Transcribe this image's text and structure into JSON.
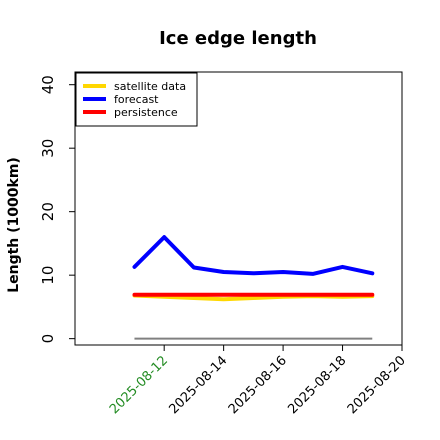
{
  "chart_data": {
    "type": "line",
    "title": "Ice edge length",
    "xlabel": "",
    "ylabel": "Length (1000km)",
    "ylim": [
      -1,
      42
    ],
    "xlim": [
      "2025-08-09",
      "2025-08-20"
    ],
    "yticks": [
      0,
      10,
      20,
      30,
      40
    ],
    "xticks": [
      "2025-08-12",
      "2025-08-14",
      "2025-08-16",
      "2025-08-18",
      "2025-08-20"
    ],
    "highlighted_xtick": "2025-08-12",
    "highlight_color": "#228B22",
    "grid": false,
    "legend_position": "top-left",
    "x": [
      "2025-08-11",
      "2025-08-12",
      "2025-08-13",
      "2025-08-14",
      "2025-08-15",
      "2025-08-16",
      "2025-08-17",
      "2025-08-18",
      "2025-08-19"
    ],
    "series": [
      {
        "name": "satellite data",
        "color": "#FFD700",
        "values": [
          6.8,
          6.6,
          6.4,
          6.2,
          6.4,
          6.6,
          6.7,
          6.6,
          6.7
        ]
      },
      {
        "name": "forecast",
        "color": "#0000FF",
        "values": [
          11.3,
          16.0,
          11.2,
          10.5,
          10.3,
          10.5,
          10.2,
          11.3,
          10.3
        ]
      },
      {
        "name": "persistence",
        "color": "#FF0000",
        "values": [
          6.9,
          6.9,
          6.9,
          6.9,
          6.9,
          6.9,
          6.9,
          6.9,
          6.9
        ]
      }
    ],
    "reference_line": {
      "color": "#808080",
      "value": 0
    }
  }
}
